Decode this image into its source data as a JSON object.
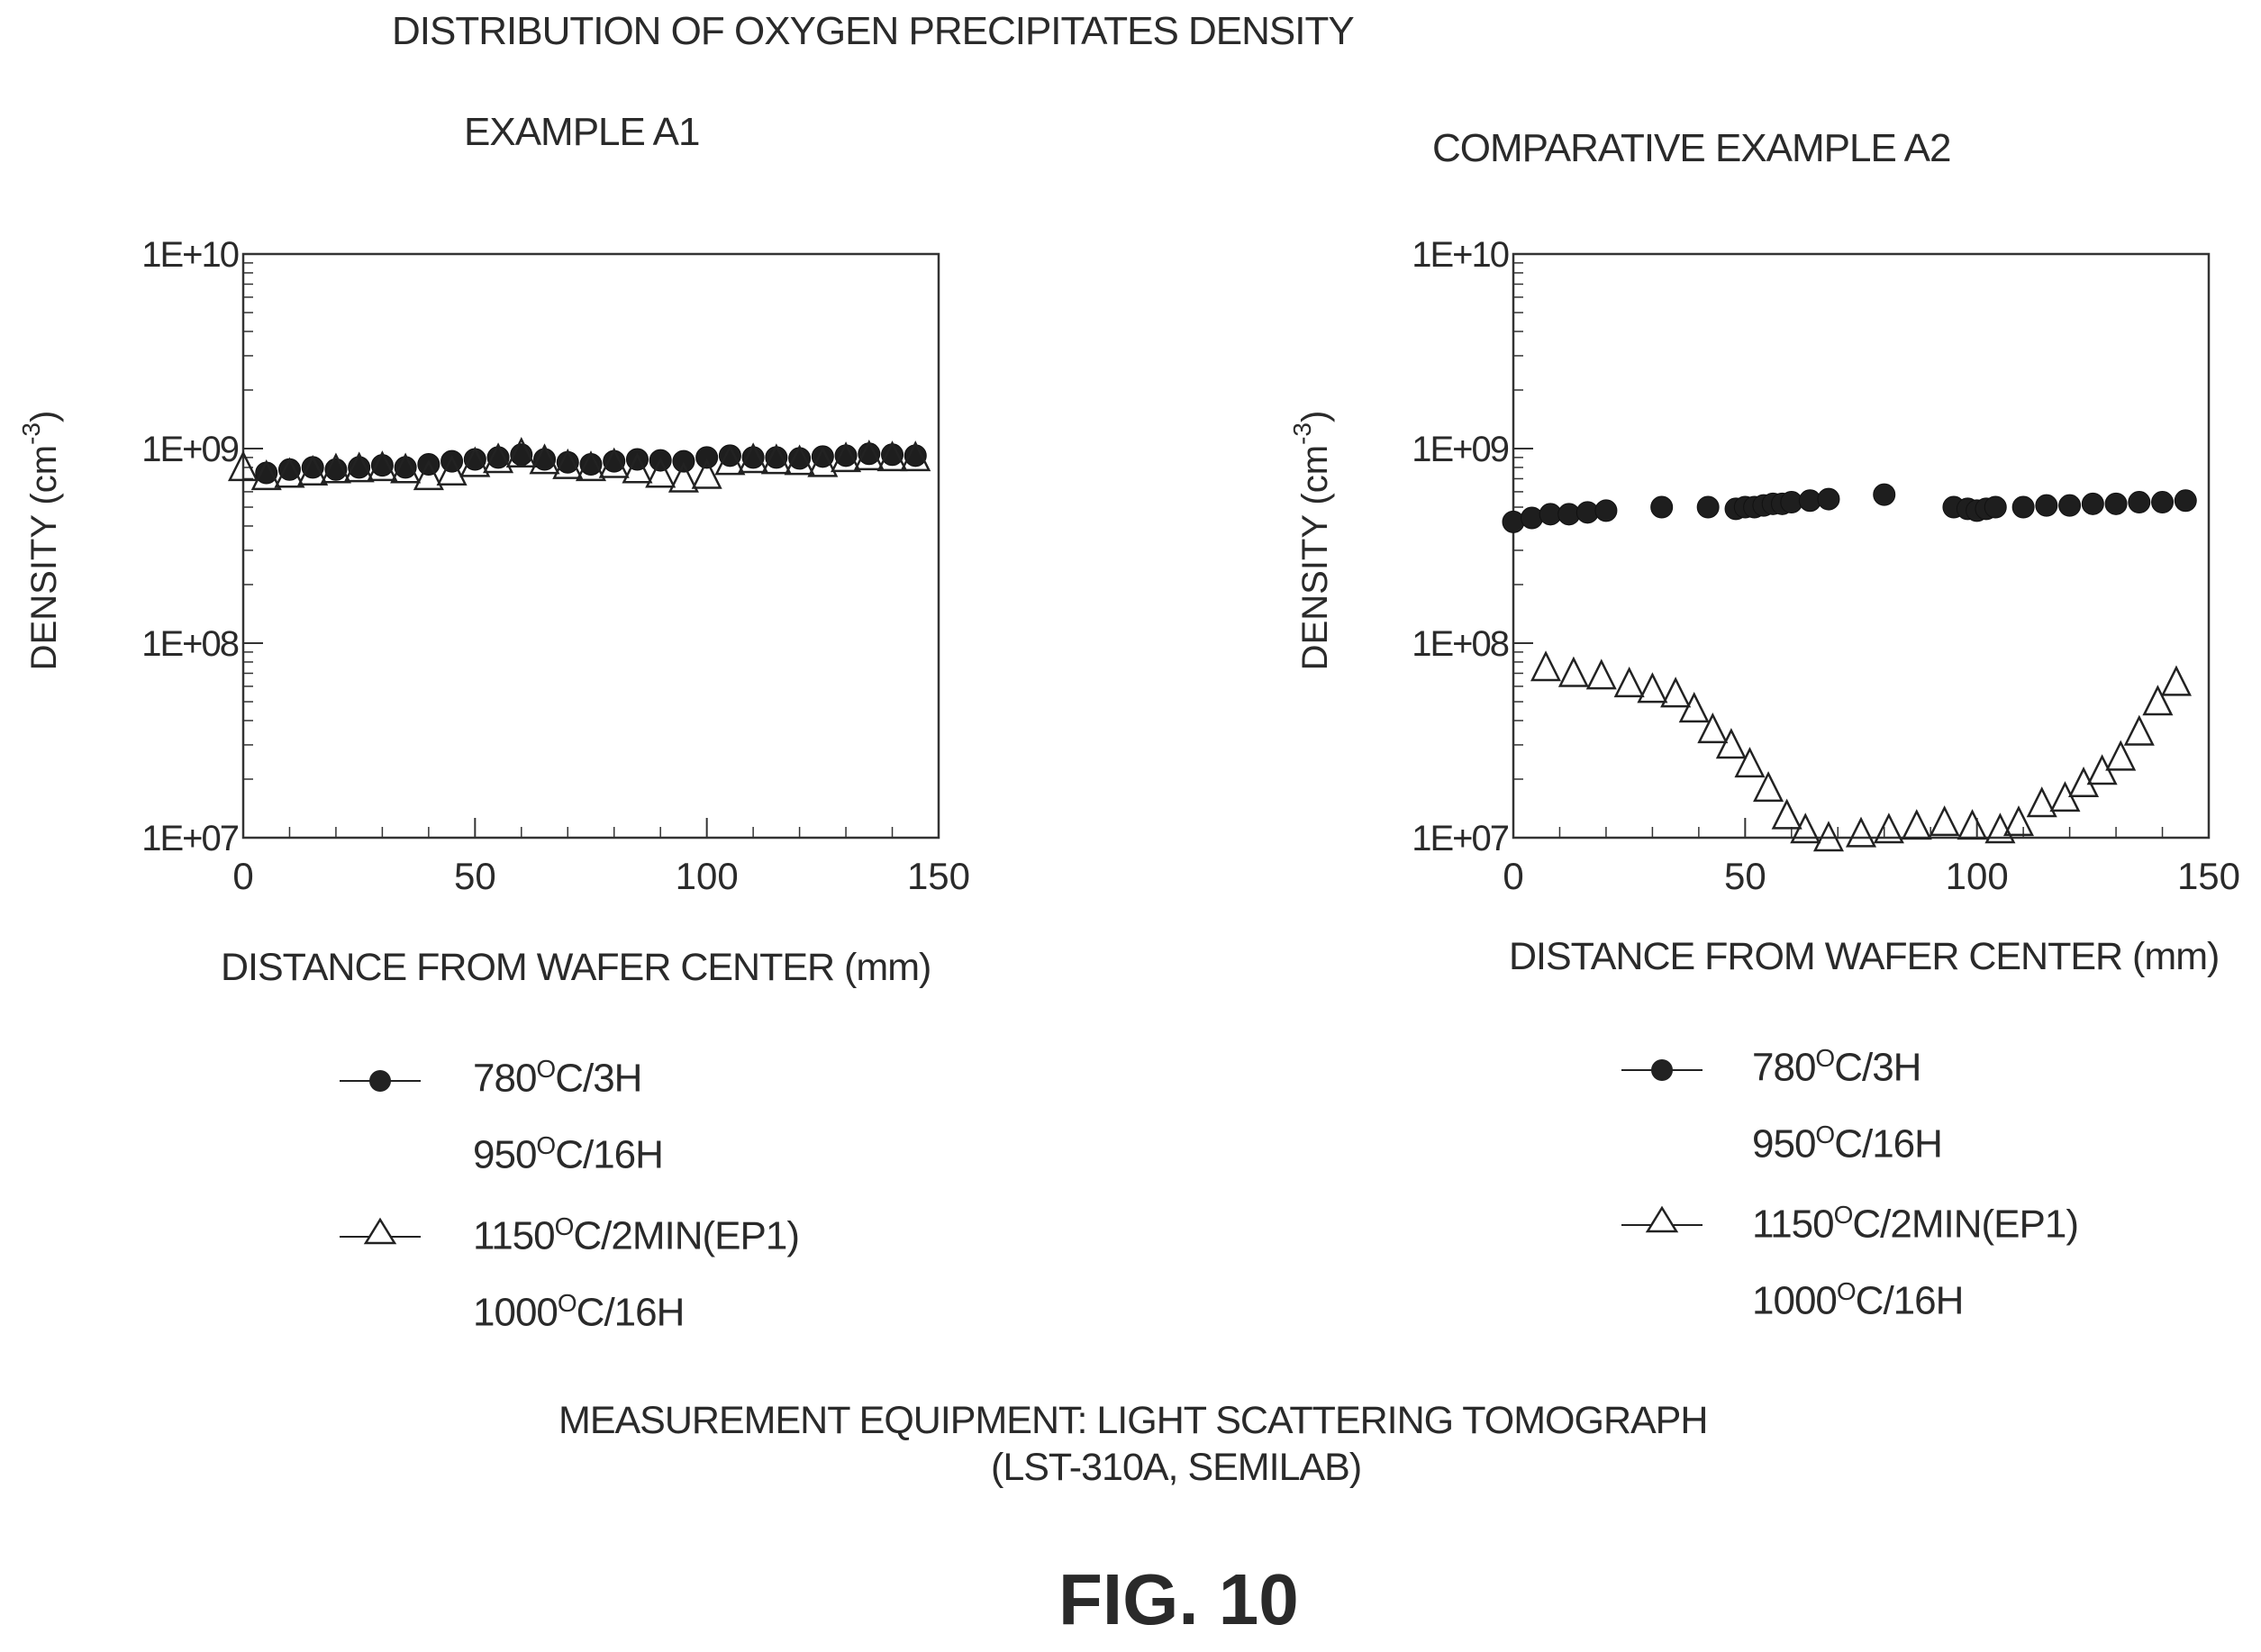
{
  "figure": {
    "title": "DISTRIBUTION OF OXYGEN PRECIPITATES DENSITY",
    "footnote_line1": "MEASUREMENT EQUIPMENT:  LIGHT SCATTERING TOMOGRAPH",
    "footnote_line2": "(LST-310A, SEMILAB)",
    "figure_label": "FIG. 10"
  },
  "legend": {
    "s1_line1_a": "780",
    "s1_line1_deg": "O",
    "s1_line1_b": "C/3H",
    "s1_line2_a": "950",
    "s1_line2_deg": "O",
    "s1_line2_b": "C/16H",
    "s2_line1_a": "1150",
    "s2_line1_deg": "O",
    "s2_line1_b": "C/2MIN(EP1)",
    "s2_line2_a": "1000",
    "s2_line2_deg": "O",
    "s2_line2_b": "C/16H"
  },
  "chart_data": [
    {
      "type": "scatter",
      "title": "EXAMPLE A1",
      "xlabel": "DISTANCE FROM WAFER CENTER (mm)",
      "ylabel": "DENSITY (cm-3)",
      "xlim": [
        0,
        150
      ],
      "ylim": [
        10000000.0,
        10000000000.0
      ],
      "yscale": "log",
      "xticks": [
        0,
        50,
        100,
        150
      ],
      "xtick_labels": [
        "0",
        "50",
        "100",
        "150"
      ],
      "yticks": [
        10000000.0,
        100000000.0,
        1000000000.0,
        10000000000.0
      ],
      "ytick_labels": [
        "1E+07",
        "1E+08",
        "1E+09",
        "1E+10"
      ],
      "grid": false,
      "series": [
        {
          "marker": "filled-circle",
          "x": [
            5,
            10,
            15,
            20,
            25,
            30,
            35,
            40,
            45,
            50,
            55,
            60,
            65,
            70,
            75,
            80,
            85,
            90,
            95,
            100,
            105,
            110,
            115,
            120,
            125,
            130,
            135,
            140,
            145
          ],
          "y": [
            750000000.0,
            780000000.0,
            800000000.0,
            780000000.0,
            800000000.0,
            820000000.0,
            800000000.0,
            830000000.0,
            860000000.0,
            880000000.0,
            900000000.0,
            930000000.0,
            880000000.0,
            850000000.0,
            830000000.0,
            860000000.0,
            880000000.0,
            870000000.0,
            860000000.0,
            900000000.0,
            920000000.0,
            900000000.0,
            900000000.0,
            890000000.0,
            910000000.0,
            920000000.0,
            940000000.0,
            930000000.0,
            920000000.0
          ]
        },
        {
          "marker": "open-triangle",
          "x": [
            0,
            5,
            10,
            15,
            20,
            25,
            30,
            35,
            40,
            45,
            50,
            55,
            60,
            65,
            70,
            75,
            80,
            85,
            90,
            95,
            100,
            105,
            110,
            115,
            120,
            125,
            130,
            135,
            140,
            145
          ],
          "y": [
            800000000.0,
            720000000.0,
            740000000.0,
            760000000.0,
            780000000.0,
            790000000.0,
            800000000.0,
            780000000.0,
            720000000.0,
            760000000.0,
            840000000.0,
            880000000.0,
            940000000.0,
            870000000.0,
            820000000.0,
            800000000.0,
            830000000.0,
            780000000.0,
            740000000.0,
            700000000.0,
            730000000.0,
            860000000.0,
            880000000.0,
            870000000.0,
            860000000.0,
            840000000.0,
            890000000.0,
            910000000.0,
            900000000.0,
            900000000.0
          ]
        }
      ]
    },
    {
      "type": "scatter",
      "title": "COMPARATIVE EXAMPLE A2",
      "xlabel": "DISTANCE FROM WAFER CENTER (mm)",
      "ylabel": "DENSITY (cm-3)",
      "xlim": [
        0,
        150
      ],
      "ylim": [
        10000000.0,
        10000000000.0
      ],
      "yscale": "log",
      "xticks": [
        0,
        50,
        100,
        150
      ],
      "xtick_labels": [
        "0",
        "50",
        "100",
        "150"
      ],
      "yticks": [
        10000000.0,
        100000000.0,
        1000000000.0,
        10000000000.0
      ],
      "ytick_labels": [
        "1E+07",
        "1E+08",
        "1E+09",
        "1E+10"
      ],
      "grid": false,
      "series": [
        {
          "marker": "filled-circle",
          "x": [
            0,
            4,
            8,
            12,
            16,
            20,
            32,
            42,
            48,
            50,
            52,
            54,
            56,
            58,
            60,
            64,
            68,
            80,
            95,
            98,
            100,
            102,
            104,
            110,
            115,
            120,
            125,
            130,
            135,
            140,
            145
          ],
          "y": [
            420000000.0,
            440000000.0,
            460000000.0,
            460000000.0,
            470000000.0,
            480000000.0,
            500000000.0,
            500000000.0,
            490000000.0,
            500000000.0,
            500000000.0,
            510000000.0,
            520000000.0,
            520000000.0,
            530000000.0,
            540000000.0,
            550000000.0,
            580000000.0,
            500000000.0,
            490000000.0,
            480000000.0,
            490000000.0,
            500000000.0,
            500000000.0,
            510000000.0,
            510000000.0,
            520000000.0,
            520000000.0,
            530000000.0,
            530000000.0,
            540000000.0
          ]
        },
        {
          "marker": "open-triangle",
          "x": [
            7,
            13,
            19,
            25,
            30,
            35,
            39,
            43,
            47,
            51,
            55,
            59,
            63,
            68,
            75,
            81,
            87,
            93,
            99,
            105,
            109,
            114,
            119,
            123,
            127,
            131,
            135,
            139,
            143
          ],
          "y": [
            75000000.0,
            70000000.0,
            68000000.0,
            62000000.0,
            58000000.0,
            55000000.0,
            46000000.0,
            36000000.0,
            30000000.0,
            24000000.0,
            18000000.0,
            13000000.0,
            11000000.0,
            10000000.0,
            10500000.0,
            11000000.0,
            11500000.0,
            12000000.0,
            11500000.0,
            11000000.0,
            12000000.0,
            15000000.0,
            16000000.0,
            19000000.0,
            22000000.0,
            26000000.0,
            35000000.0,
            50000000.0,
            63000000.0
          ]
        }
      ]
    }
  ]
}
